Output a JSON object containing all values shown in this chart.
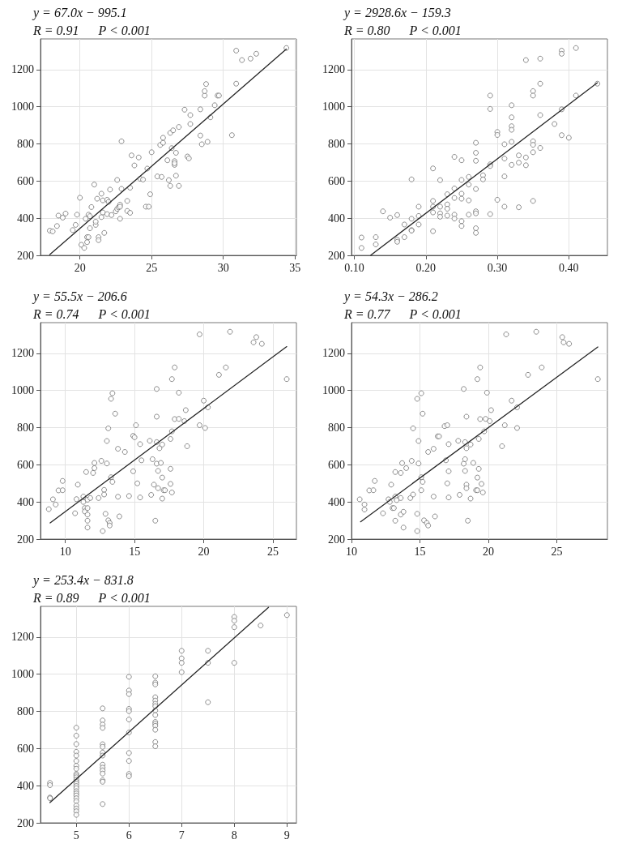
{
  "chart_data": [
    {
      "type": "scatter",
      "title": "y = 67.0x − 995.1",
      "subtitle": "R = 0.91      P < 0.001",
      "xlim": [
        17.25,
        35.1
      ],
      "xticks": [
        20,
        25,
        30,
        35
      ],
      "ylim": [
        200,
        1365
      ],
      "yticks": [
        200,
        400,
        600,
        800,
        1000,
        1200
      ],
      "grid": true,
      "marker": "circle",
      "series": [
        {
          "color": "#707070",
          "x": [
            17.9,
            18.1,
            18.4,
            18.5,
            18.8,
            19.0,
            19.5,
            19.7,
            19.8,
            20.0,
            20.1,
            20.3,
            20.4,
            20.5,
            20.5,
            20.6,
            20.6,
            20.7,
            20.7,
            20.8,
            21.0,
            21.1,
            21.1,
            21.2,
            21.3,
            21.3,
            21.5,
            21.5,
            21.6,
            21.6,
            21.7,
            21.9,
            21.9,
            22.0,
            22.1,
            22.2,
            22.5,
            22.6,
            22.6,
            22.7,
            22.8,
            22.8,
            22.8,
            22.9,
            22.9,
            23.3,
            23.3,
            23.5,
            23.5,
            23.6,
            23.8,
            24.1,
            24.2,
            24.4,
            24.6,
            24.7,
            24.8,
            24.9,
            25.0,
            25.4,
            25.6,
            25.7,
            25.8,
            25.8,
            26.1,
            26.2,
            26.3,
            26.3,
            26.4,
            26.5,
            26.6,
            26.6,
            26.6,
            26.7,
            26.7,
            26.9,
            26.9,
            27.3,
            27.5,
            27.6,
            27.7,
            27.7,
            28.4,
            28.4,
            28.5,
            28.7,
            28.7,
            28.8,
            28.9,
            29.1,
            29.4,
            29.6,
            29.7,
            30.6,
            30.9,
            30.9,
            31.3,
            31.9,
            32.3,
            34.4
          ],
          "values": [
            333,
            329,
            358,
            414,
            403,
            425,
            336,
            364,
            419,
            510,
            257,
            240,
            397,
            271,
            298,
            298,
            419,
            411,
            346,
            460,
            581,
            364,
            381,
            505,
            298,
            282,
            406,
            532,
            431,
            496,
            321,
            499,
            422,
            488,
            554,
            417,
            437,
            606,
            450,
            459,
            473,
            397,
            462,
            814,
            558,
            493,
            439,
            429,
            564,
            738,
            684,
            727,
            612,
            608,
            462,
            667,
            462,
            529,
            755,
            625,
            794,
            622,
            806,
            833,
            712,
            605,
            859,
            574,
            777,
            873,
            707,
            687,
            696,
            752,
            629,
            891,
            574,
            984,
            732,
            722,
            955,
            907,
            845,
            986,
            798,
            1060,
            1084,
            1122,
            811,
            943,
            1008,
            1060,
            1060,
            847,
            1302,
            1124,
            1251,
            1259,
            1285,
            1316
          ]
        },
        {
          "type": "line",
          "marker": "none",
          "color": "#262626",
          "x": [
            17.9,
            34.4
          ],
          "values": [
            204,
            1310
          ]
        }
      ]
    },
    {
      "type": "scatter",
      "title": "y = 2928.6x − 159.3",
      "subtitle": "R = 0.80      P < 0.001",
      "xlim": [
        0.096,
        0.454
      ],
      "xticks": [
        {
          "value": 0.1,
          "label": "0.10"
        },
        {
          "value": 0.2,
          "label": "0.20"
        },
        {
          "value": 0.3,
          "label": "0.30"
        },
        {
          "value": 0.4,
          "label": "0.40"
        }
      ],
      "ylim": [
        200,
        1365
      ],
      "yticks": [
        200,
        400,
        600,
        800,
        1000,
        1200
      ],
      "grid": true,
      "marker": "circle",
      "series": [
        {
          "color": "#707070",
          "x": [
            0.11,
            0.11,
            0.13,
            0.13,
            0.14,
            0.15,
            0.16,
            0.16,
            0.16,
            0.17,
            0.17,
            0.18,
            0.18,
            0.18,
            0.18,
            0.19,
            0.19,
            0.19,
            0.21,
            0.21,
            0.21,
            0.21,
            0.21,
            0.22,
            0.22,
            0.22,
            0.22,
            0.23,
            0.23,
            0.23,
            0.23,
            0.24,
            0.24,
            0.24,
            0.24,
            0.24,
            0.25,
            0.25,
            0.25,
            0.25,
            0.25,
            0.25,
            0.26,
            0.26,
            0.26,
            0.26,
            0.27,
            0.27,
            0.27,
            0.27,
            0.27,
            0.27,
            0.27,
            0.27,
            0.28,
            0.28,
            0.29,
            0.29,
            0.29,
            0.29,
            0.29,
            0.3,
            0.3,
            0.3,
            0.31,
            0.31,
            0.31,
            0.31,
            0.32,
            0.32,
            0.32,
            0.32,
            0.32,
            0.32,
            0.33,
            0.33,
            0.33,
            0.34,
            0.34,
            0.34,
            0.35,
            0.35,
            0.35,
            0.35,
            0.35,
            0.35,
            0.36,
            0.36,
            0.36,
            0.36,
            0.38,
            0.39,
            0.39,
            0.39,
            0.39,
            0.4,
            0.41,
            0.41,
            0.44
          ],
          "values": [
            296,
            240,
            298,
            259,
            437,
            403,
            417,
            284,
            273,
            366,
            298,
            609,
            397,
            336,
            333,
            462,
            412,
            366,
            668,
            493,
            462,
            431,
            330,
            605,
            462,
            426,
            408,
            529,
            474,
            451,
            414,
            730,
            560,
            509,
            419,
            398,
            712,
            606,
            532,
            505,
            384,
            358,
            622,
            581,
            496,
            419,
            806,
            752,
            709,
            557,
            437,
            426,
            346,
            321,
            631,
            609,
            1060,
            988,
            690,
            681,
            422,
            864,
            848,
            499,
            798,
            721,
            625,
            462,
            1008,
            943,
            895,
            876,
            811,
            687,
            738,
            699,
            459,
            1251,
            727,
            685,
            1084,
            1060,
            814,
            795,
            755,
            493,
            1259,
            1124,
            955,
            778,
            907,
            1302,
            1285,
            986,
            847,
            833,
            1316,
            1060,
            1124
          ]
        },
        {
          "type": "line",
          "marker": "none",
          "color": "#262626",
          "x": [
            0.123,
            0.44
          ],
          "values": [
            201,
            1129
          ]
        }
      ]
    },
    {
      "type": "scatter",
      "title": "y = 55.5x − 206.6",
      "subtitle": "R = 0.74      P < 0.001",
      "xlim": [
        8.2,
        26.7
      ],
      "xticks": [
        10,
        15,
        20,
        25
      ],
      "ylim": [
        200,
        1365
      ],
      "yticks": [
        200,
        400,
        600,
        800,
        1000,
        1200
      ],
      "grid": true,
      "marker": "circle",
      "series": [
        {
          "color": "#707070",
          "x": [
            8.8,
            9.1,
            9.3,
            9.5,
            9.8,
            9.8,
            10.7,
            10.8,
            10.9,
            11.3,
            11.3,
            11.4,
            11.4,
            11.5,
            11.6,
            11.6,
            11.6,
            11.6,
            11.6,
            11.8,
            12.0,
            12.1,
            12.1,
            12.4,
            12.6,
            12.7,
            12.8,
            12.8,
            12.9,
            13.0,
            13.0,
            13.1,
            13.1,
            13.2,
            13.3,
            13.2,
            13.3,
            13.4,
            13.4,
            13.6,
            13.8,
            13.8,
            13.9,
            14.3,
            14.6,
            14.9,
            14.9,
            15.0,
            15.1,
            15.2,
            15.4,
            15.4,
            15.5,
            16.1,
            16.2,
            16.3,
            16.4,
            16.5,
            16.6,
            16.6,
            16.6,
            16.6,
            16.7,
            16.7,
            16.8,
            16.9,
            17.0,
            17.0,
            17.0,
            17.1,
            17.2,
            17.6,
            17.6,
            17.6,
            17.7,
            17.7,
            17.7,
            17.9,
            17.9,
            18.2,
            18.2,
            18.6,
            18.7,
            18.8,
            19.7,
            19.7,
            20.0,
            20.1,
            20.3,
            21.1,
            21.6,
            21.9,
            23.6,
            23.8,
            24.2,
            26.0
          ],
          "values": [
            361,
            414,
            386,
            462,
            513,
            463,
            339,
            415,
            493,
            400,
            429,
            367,
            349,
            561,
            412,
            367,
            332,
            299,
            262,
            421,
            556,
            610,
            582,
            421,
            621,
            243,
            465,
            440,
            336,
            607,
            728,
            796,
            301,
            287,
            533,
            273,
            955,
            985,
            508,
            875,
            686,
            428,
            322,
            669,
            432,
            565,
            756,
            748,
            813,
            500,
            711,
            424,
            624,
            729,
            438,
            630,
            493,
            299,
            1008,
            859,
            722,
            606,
            567,
            474,
            689,
            610,
            709,
            531,
            418,
            463,
            463,
            739,
            578,
            497,
            1061,
            451,
            780,
            1124,
            846,
            988,
            847,
            835,
            894,
            700,
            1302,
            813,
            945,
            798,
            909,
            1084,
            1124,
            1316,
            1259,
            1287,
            1251,
            1061
          ]
        },
        {
          "type": "line",
          "marker": "none",
          "color": "#262626",
          "x": [
            8.9,
            26.0
          ],
          "values": [
            287,
            1236
          ]
        }
      ]
    },
    {
      "type": "scatter",
      "title": "y = 54.3x − 286.2",
      "subtitle": "R = 0.77      P < 0.001",
      "xlim": [
        10,
        28.7
      ],
      "xticks": [
        10,
        15,
        20,
        25
      ],
      "ylim": [
        200,
        1365
      ],
      "yticks": [
        200,
        400,
        600,
        800,
        1000,
        1200
      ],
      "grid": true,
      "marker": "circle",
      "series": [
        {
          "color": "#707070",
          "x": [
            10.6,
            10.95,
            10.95,
            11.3,
            11.6,
            11.7,
            12.3,
            12.7,
            12.8,
            12.9,
            13.0,
            13.1,
            13.2,
            13.2,
            13.2,
            13.3,
            13.6,
            13.6,
            13.6,
            13.7,
            13.8,
            13.8,
            14.0,
            14.3,
            14.4,
            14.5,
            14.5,
            14.8,
            14.8,
            14.8,
            14.9,
            14.9,
            15.1,
            15.1,
            15.2,
            15.2,
            15.1,
            15.3,
            15.5,
            15.6,
            15.6,
            16.0,
            16.0,
            16.1,
            16.3,
            16.4,
            16.8,
            17.0,
            16.9,
            17.0,
            17.1,
            17.1,
            17.1,
            17.8,
            17.9,
            18.2,
            18.2,
            18.3,
            18.3,
            18.3,
            18.4,
            18.4,
            18.4,
            18.4,
            18.5,
            18.7,
            18.7,
            18.9,
            19.1,
            19.2,
            19.2,
            19.2,
            19.3,
            19.3,
            19.4,
            19.4,
            19.5,
            19.6,
            19.7,
            19.8,
            19.9,
            20.1,
            20.2,
            21.0,
            21.2,
            21.3,
            21.7,
            22.1,
            22.1,
            22.9,
            23.5,
            23.9,
            25.4,
            25.5,
            25.9,
            28.0
          ],
          "values": [
            414,
            386,
            359,
            462,
            463,
            513,
            339,
            414,
            400,
            493,
            367,
            367,
            299,
            561,
            429,
            410,
            556,
            421,
            332,
            609,
            347,
            262,
            582,
            421,
            621,
            440,
            796,
            243,
            336,
            955,
            728,
            607,
            985,
            463,
            508,
            875,
            533,
            301,
            287,
            273,
            669,
            686,
            429,
            322,
            753,
            753,
            808,
            813,
            624,
            500,
            565,
            711,
            424,
            729,
            438,
            1008,
            606,
            722,
            630,
            567,
            859,
            689,
            493,
            474,
            299,
            709,
            418,
            610,
            463,
            463,
            531,
            1061,
            739,
            578,
            1124,
            846,
            497,
            451,
            780,
            847,
            988,
            835,
            894,
            700,
            813,
            1302,
            945,
            798,
            909,
            1084,
            1316,
            1124,
            1287,
            1259,
            1251,
            1061
          ]
        },
        {
          "type": "line",
          "marker": "none",
          "color": "#262626",
          "x": [
            10.66,
            28.0
          ],
          "values": [
            293,
            1234
          ]
        }
      ]
    },
    {
      "type": "scatter",
      "title": "y = 253.4x − 831.8",
      "subtitle": "R = 0.89      P < 0.001",
      "xlim": [
        4.32,
        9.18
      ],
      "xticks": [
        5,
        6,
        7,
        8,
        9
      ],
      "ylim": [
        200,
        1365
      ],
      "yticks": [
        200,
        400,
        600,
        800,
        1000,
        1200
      ],
      "grid": true,
      "marker": "circle",
      "series": [
        {
          "color": "#707070",
          "x": [
            4.5,
            4.5,
            4.5,
            4.5,
            5,
            5,
            5,
            5,
            5,
            5,
            5,
            5,
            5,
            5,
            5,
            5,
            5,
            5,
            5,
            5,
            5,
            5,
            5,
            5,
            5,
            5,
            5,
            5,
            5,
            5.5,
            5.5,
            5.5,
            5.5,
            5.5,
            5.5,
            5.5,
            5.5,
            5.5,
            5.5,
            5.5,
            5.5,
            5.5,
            5.5,
            5.5,
            6,
            6,
            6,
            6,
            6,
            6,
            6,
            6,
            6,
            6,
            6,
            6.5,
            6.5,
            6.5,
            6.5,
            6.5,
            6.5,
            6.5,
            6.5,
            6.5,
            6.5,
            6.5,
            6.5,
            6.5,
            6.5,
            6.5,
            7,
            7,
            7,
            7,
            7.5,
            7.5,
            7.5,
            8,
            8,
            8,
            8,
            8.5,
            9
          ],
          "values": [
            415,
            403,
            336,
            332,
            712,
            669,
            624,
            582,
            562,
            533,
            507,
            491,
            463,
            455,
            445,
            432,
            421,
            411,
            398,
            386,
            370,
            358,
            347,
            332,
            316,
            293,
            277,
            262,
            243,
            816,
            751,
            729,
            711,
            623,
            609,
            578,
            562,
            513,
            497,
            482,
            465,
            429,
            421,
            301,
            986,
            912,
            893,
            813,
            801,
            756,
            686,
            576,
            533,
            463,
            451,
            989,
            955,
            945,
            876,
            858,
            841,
            828,
            805,
            780,
            743,
            733,
            722,
            701,
            635,
            612,
            1126,
            1085,
            1061,
            1011,
            1126,
            1061,
            849,
            1308,
            1288,
            1253,
            1061,
            1262,
            1318
          ]
        },
        {
          "type": "line",
          "marker": "none",
          "color": "#262626",
          "x": [
            4.5,
            8.65
          ],
          "values": [
            309,
            1360
          ]
        }
      ]
    }
  ]
}
